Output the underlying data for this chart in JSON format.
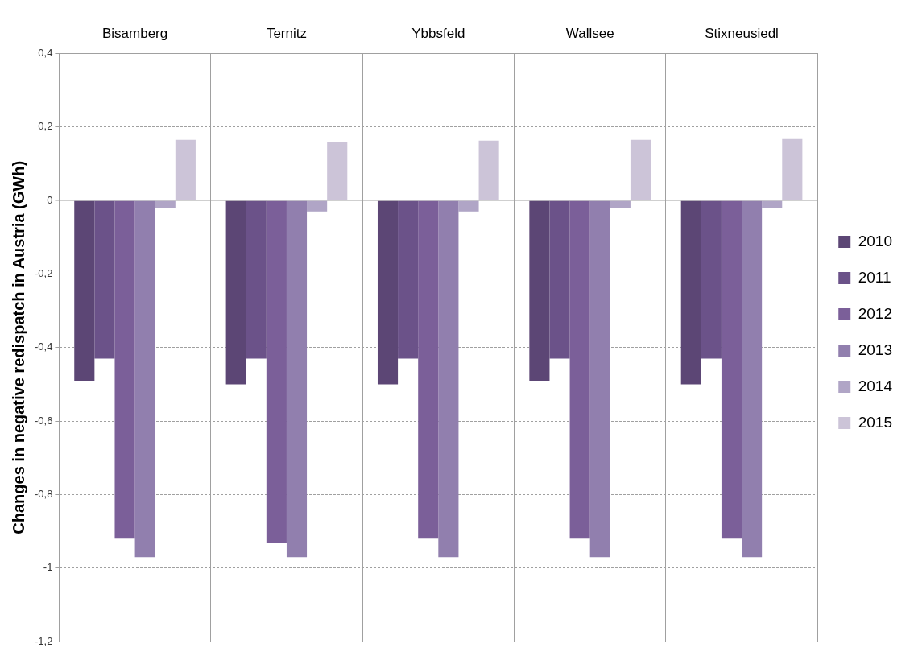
{
  "chart_data": {
    "type": "bar",
    "ylabel": "Changes in negative redispatch in Austria (GWh)",
    "categories": [
      "Bisamberg",
      "Ternitz",
      "Ybbsfeld",
      "Wallsee",
      "Stixneusiedl"
    ],
    "series": [
      {
        "name": "2010",
        "color": "#5c4675",
        "values": [
          -0.49,
          -0.5,
          -0.5,
          -0.49,
          -0.5
        ]
      },
      {
        "name": "2011",
        "color": "#6b5289",
        "values": [
          -0.43,
          -0.43,
          -0.43,
          -0.43,
          -0.43
        ]
      },
      {
        "name": "2012",
        "color": "#7b5f99",
        "values": [
          -0.92,
          -0.93,
          -0.92,
          -0.92,
          -0.92
        ]
      },
      {
        "name": "2013",
        "color": "#917fae",
        "values": [
          -0.97,
          -0.97,
          -0.97,
          -0.97,
          -0.97
        ]
      },
      {
        "name": "2014",
        "color": "#b0a5c6",
        "values": [
          -0.02,
          -0.03,
          -0.03,
          -0.02,
          -0.02
        ]
      },
      {
        "name": "2015",
        "color": "#ccc4d8",
        "values": [
          0.165,
          0.16,
          0.163,
          0.165,
          0.167
        ]
      }
    ],
    "ylim": [
      -1.2,
      0.4
    ],
    "yticks": [
      {
        "value": -1.2,
        "label": "-1,2"
      },
      -1,
      {
        "value": -0.8,
        "label": "-0,8"
      },
      {
        "value": -0.6,
        "label": "-0,6"
      },
      {
        "value": -0.4,
        "label": "-0,4"
      },
      {
        "value": -0.2,
        "label": "-0,2"
      },
      0,
      {
        "value": 0.2,
        "label": "0,2"
      },
      {
        "value": 0.4,
        "label": "0,4"
      }
    ],
    "grid": true,
    "legend": "right"
  }
}
